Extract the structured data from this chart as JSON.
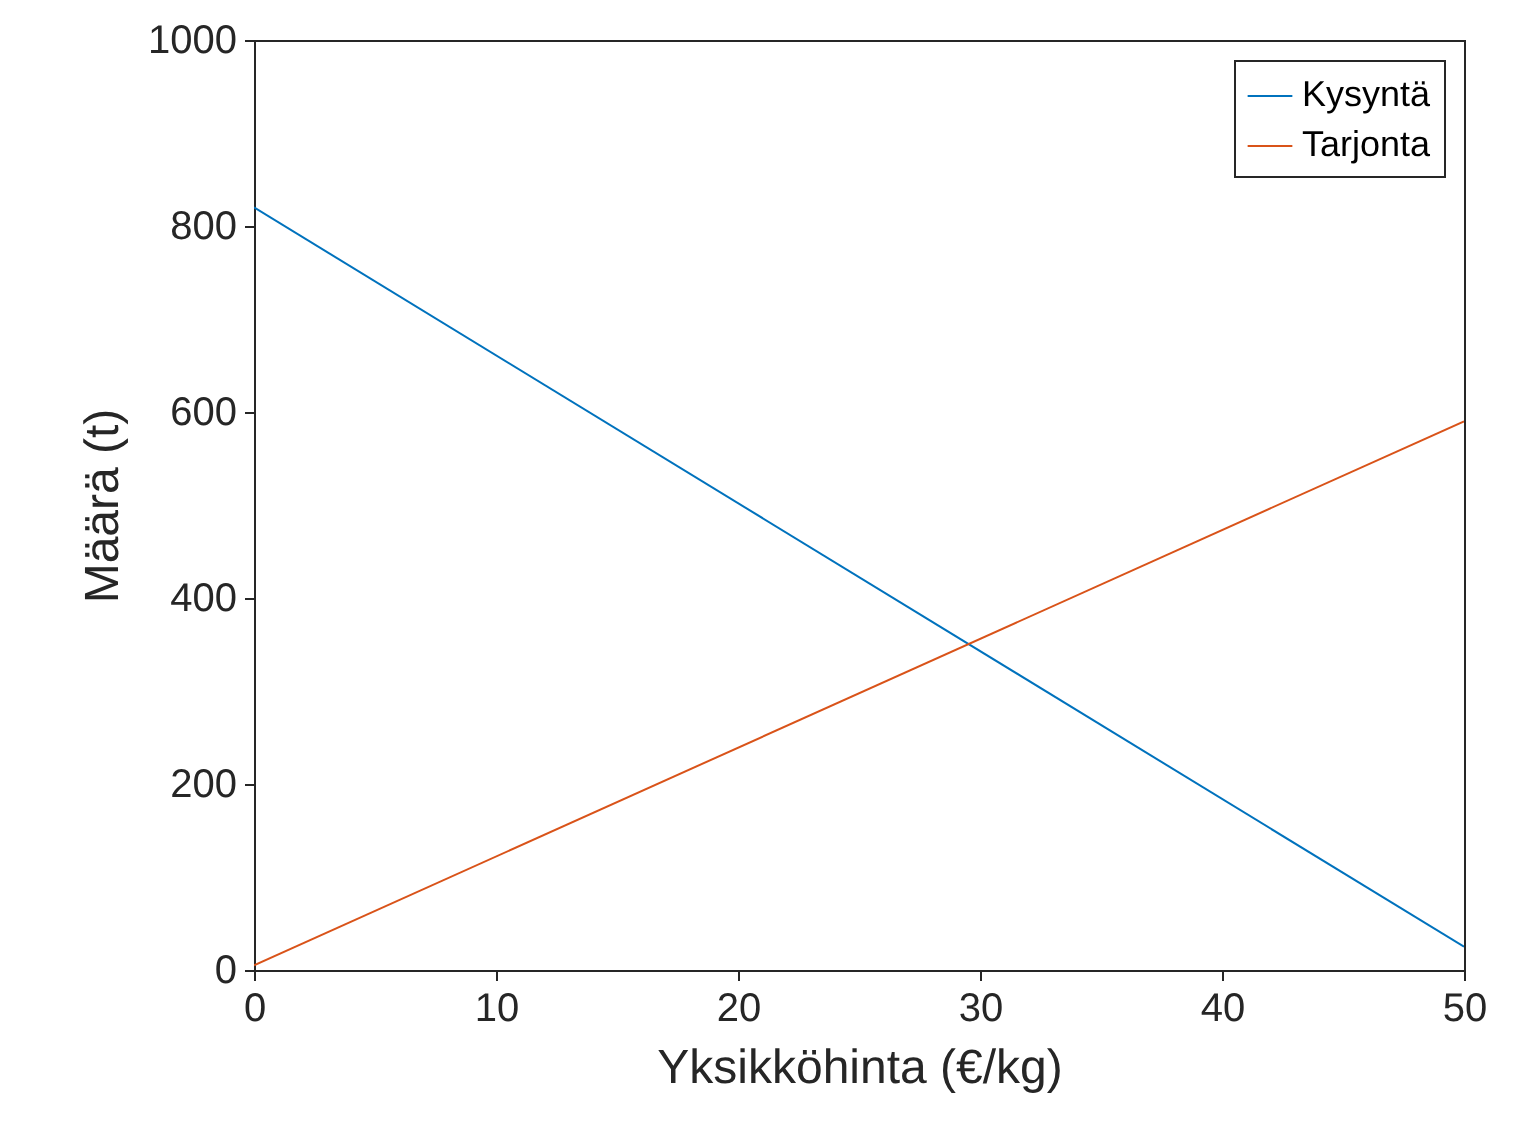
{
  "chart_data": {
    "type": "line",
    "xlabel": "Yksikköhinta (€/kg)",
    "ylabel": "Määrä (t)",
    "x": [
      0,
      50
    ],
    "series": [
      {
        "name": "Kysyntä",
        "color": "#0072bd",
        "values": [
          820,
          25
        ]
      },
      {
        "name": "Tarjonta",
        "color": "#d95319",
        "values": [
          5,
          590
        ]
      }
    ],
    "xlim": [
      0,
      50
    ],
    "xticks": [
      0,
      10,
      20,
      30,
      40,
      50
    ],
    "ylim": [
      0,
      1000
    ],
    "yticks": [
      0,
      200,
      400,
      600,
      800,
      1000
    ],
    "legend": "top right",
    "marker": "none",
    "line_style": "solid"
  }
}
